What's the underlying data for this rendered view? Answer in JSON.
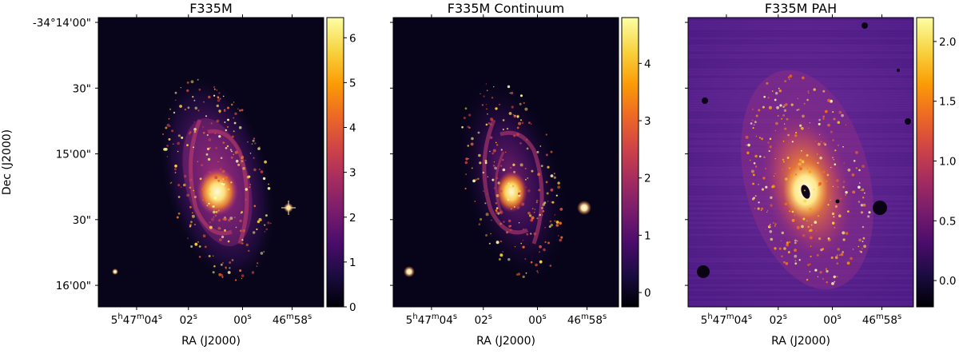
{
  "figure": {
    "xlabel": "RA (J2000)",
    "ylabel": "Dec (J2000)",
    "dec_ticks": [
      {
        "label": "-34°14'00\"",
        "value": 0
      },
      {
        "label": "30\"",
        "value": 30
      },
      {
        "label": "15'00\"",
        "value": 60
      },
      {
        "label": "30\"",
        "value": 90
      },
      {
        "label": "16'00\"",
        "value": 120
      }
    ],
    "ra_ticks": [
      {
        "pre": "5",
        "sup1": "h",
        "mid": "47",
        "sup2": "m",
        "post": "04",
        "sup3": "s"
      },
      {
        "pre": "",
        "sup1": "",
        "mid": "",
        "sup2": "",
        "post": "02",
        "sup3": "s"
      },
      {
        "pre": "",
        "sup1": "",
        "mid": "",
        "sup2": "",
        "post": "00",
        "sup3": "s"
      },
      {
        "pre": "",
        "sup1": "",
        "mid": "46",
        "sup2": "m",
        "post": "58",
        "sup3": "s"
      }
    ],
    "colormap": [
      "#000004",
      "#1b0c41",
      "#4a0c6b",
      "#781c6d",
      "#a52c60",
      "#cf4446",
      "#ed6925",
      "#fb9b06",
      "#f7d13d",
      "#fcffa4"
    ]
  },
  "panels": [
    {
      "title": "F335M",
      "colorbar": {
        "ticks": [
          {
            "label": "0",
            "value": 0
          },
          {
            "label": "1",
            "value": 1
          },
          {
            "label": "2",
            "value": 2
          },
          {
            "label": "3",
            "value": 3
          },
          {
            "label": "4",
            "value": 4
          },
          {
            "label": "5",
            "value": 5
          },
          {
            "label": "6",
            "value": 6
          }
        ],
        "min": 0,
        "max": 6.45
      }
    },
    {
      "title": "F335M Continuum",
      "colorbar": {
        "ticks": [
          {
            "label": "0",
            "value": 0
          },
          {
            "label": "1",
            "value": 1
          },
          {
            "label": "2",
            "value": 2
          },
          {
            "label": "3",
            "value": 3
          },
          {
            "label": "4",
            "value": 4
          }
        ],
        "min": -0.25,
        "max": 4.8
      }
    },
    {
      "title": "F335M PAH",
      "colorbar": {
        "ticks": [
          {
            "label": "0.0",
            "value": 0.0
          },
          {
            "label": "0.5",
            "value": 0.5
          },
          {
            "label": "1.0",
            "value": 1.0
          },
          {
            "label": "1.5",
            "value": 1.5
          },
          {
            "label": "2.0",
            "value": 2.0
          }
        ],
        "min": -0.22,
        "max": 2.2
      }
    }
  ]
}
